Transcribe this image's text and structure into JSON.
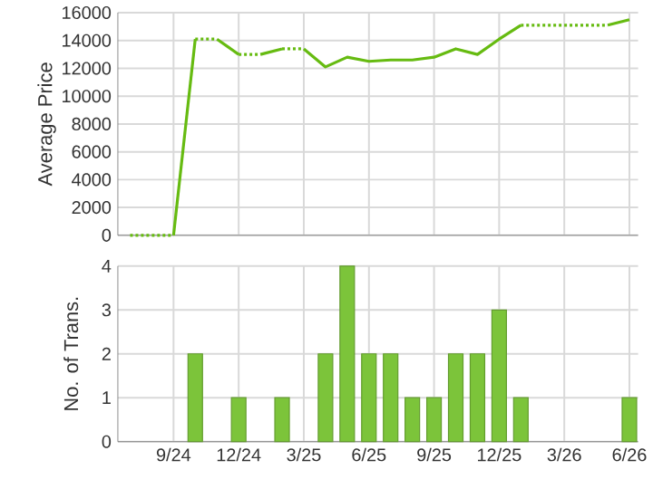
{
  "chart_data": [
    {
      "type": "line",
      "ylabel": "Average Price",
      "grid": true,
      "tick_labels": "y",
      "xlim": [
        "2024-06-14",
        "2026-06-13"
      ],
      "ylim": [
        0,
        16000
      ],
      "xticks": [
        {
          "value": "2024-09",
          "label": null
        },
        {
          "value": "2024-12",
          "label": null
        },
        {
          "value": "2025-03",
          "label": null
        },
        {
          "value": "2025-06",
          "label": null
        },
        {
          "value": "2025-09",
          "label": null
        },
        {
          "value": "2025-12",
          "label": null
        },
        {
          "value": "2026-03",
          "label": null
        },
        {
          "value": "2026-06",
          "label": null
        }
      ],
      "yticks": [
        0,
        2000,
        4000,
        6000,
        8000,
        10000,
        12000,
        14000,
        16000
      ],
      "series": [
        {
          "color": "#66bb11",
          "line_style": "dotted",
          "x": [
            "2024-07",
            "2024-08",
            "2024-09"
          ],
          "values": [
            0,
            0,
            0
          ]
        },
        {
          "color": "#66bb11",
          "line_style": "solid",
          "x": [
            "2024-09",
            "2024-10"
          ],
          "values": [
            0,
            14100
          ]
        },
        {
          "color": "#66bb11",
          "line_style": "dotted",
          "x": [
            "2024-10",
            "2024-11"
          ],
          "values": [
            14100,
            14100
          ]
        },
        {
          "color": "#66bb11",
          "line_style": "solid",
          "x": [
            "2024-11",
            "2024-12"
          ],
          "values": [
            14100,
            13000
          ]
        },
        {
          "color": "#66bb11",
          "line_style": "dotted",
          "x": [
            "2024-12",
            "2025-01"
          ],
          "values": [
            13000,
            13000
          ]
        },
        {
          "color": "#66bb11",
          "line_style": "solid",
          "x": [
            "2025-01",
            "2025-02"
          ],
          "values": [
            13000,
            13400
          ]
        },
        {
          "color": "#66bb11",
          "line_style": "dotted",
          "x": [
            "2025-02",
            "2025-03"
          ],
          "values": [
            13400,
            13400
          ]
        },
        {
          "color": "#66bb11",
          "line_style": "solid",
          "x": [
            "2025-03",
            "2025-04",
            "2025-05",
            "2025-06",
            "2025-07",
            "2025-08",
            "2025-09",
            "2025-10",
            "2025-11",
            "2025-12",
            "2026-01"
          ],
          "values": [
            13400,
            12100,
            12800,
            12500,
            12600,
            12600,
            12800,
            13400,
            13000,
            14100,
            15100
          ]
        },
        {
          "color": "#66bb11",
          "line_style": "dotted",
          "x": [
            "2026-01",
            "2026-02",
            "2026-03",
            "2026-04",
            "2026-05"
          ],
          "values": [
            15100,
            15100,
            15100,
            15100,
            15100
          ]
        },
        {
          "color": "#66bb11",
          "line_style": "solid",
          "x": [
            "2026-05",
            "2026-06"
          ],
          "values": [
            15100,
            15500
          ]
        }
      ]
    },
    {
      "type": "bar",
      "ylabel": "No. of Trans.",
      "grid": true,
      "xlim": [
        "2024-06-14",
        "2026-06-13"
      ],
      "ylim": [
        0,
        4
      ],
      "xticks": [
        {
          "value": "2024-09",
          "label": "9/24"
        },
        {
          "value": "2024-12",
          "label": "12/24"
        },
        {
          "value": "2025-03",
          "label": "3/25"
        },
        {
          "value": "2025-06",
          "label": "6/25"
        },
        {
          "value": "2025-09",
          "label": "9/25"
        },
        {
          "value": "2025-12",
          "label": "12/25"
        },
        {
          "value": "2026-03",
          "label": "3/26"
        },
        {
          "value": "2026-06",
          "label": "6/26"
        }
      ],
      "yticks": [
        0,
        1,
        2,
        3,
        4
      ],
      "series": [
        {
          "color": "#7cc43a",
          "x": [
            "2024-10",
            "2024-12",
            "2025-02",
            "2025-04",
            "2025-05",
            "2025-06",
            "2025-07",
            "2025-08",
            "2025-09",
            "2025-10",
            "2025-11",
            "2025-12",
            "2026-01",
            "2026-06"
          ],
          "values": [
            2,
            1,
            1,
            2,
            4,
            2,
            2,
            1,
            1,
            2,
            2,
            3,
            1,
            1
          ]
        }
      ]
    }
  ]
}
